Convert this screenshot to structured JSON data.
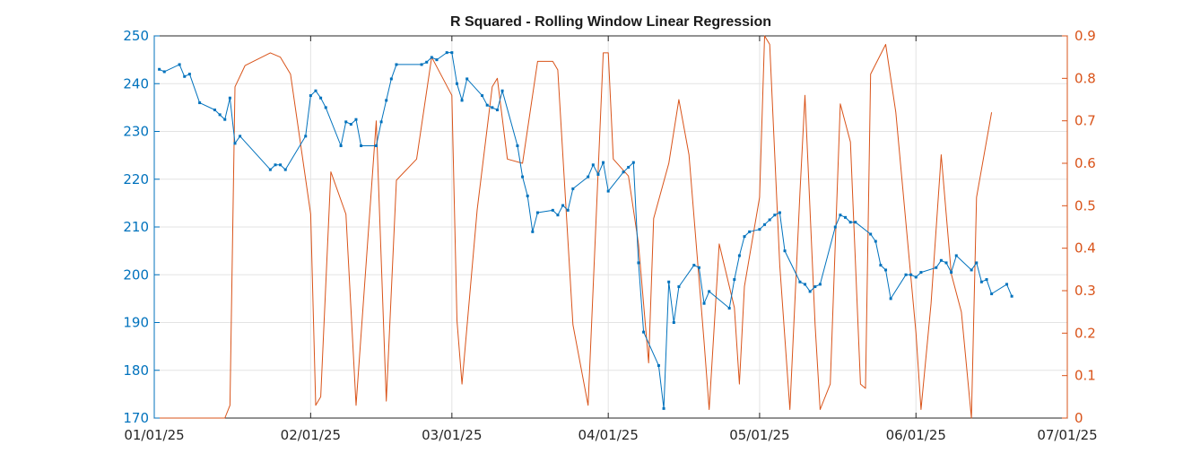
{
  "chart_data": {
    "type": "line",
    "title": "R Squared - Rolling Window Linear Regression",
    "xlabel": "",
    "ylabel_left": "",
    "ylabel_right": "",
    "x_ticks": [
      "01/01/25",
      "02/01/25",
      "03/01/25",
      "04/01/25",
      "05/01/25",
      "06/01/25",
      "07/01/25"
    ],
    "x_range": [
      "2025-01-01",
      "2025-07-01"
    ],
    "ylim_left": [
      170,
      250
    ],
    "yticks_left": [
      "170",
      "180",
      "190",
      "200",
      "210",
      "220",
      "230",
      "240",
      "250"
    ],
    "ylim_right": [
      0,
      0.9
    ],
    "yticks_right": [
      "0",
      "0.1",
      "0.2",
      "0.3",
      "0.4",
      "0.5",
      "0.6",
      "0.7",
      "0.8",
      "0.9"
    ],
    "grid": true,
    "left_axis_color": "#0072BD",
    "right_axis_color": "#D95319",
    "series": [
      {
        "axis": "left",
        "color": "#0072BD",
        "markers": true,
        "points": [
          [
            "2025-01-02",
            243.0
          ],
          [
            "2025-01-03",
            242.5
          ],
          [
            "2025-01-06",
            244.0
          ],
          [
            "2025-01-07",
            241.5
          ],
          [
            "2025-01-08",
            242.0
          ],
          [
            "2025-01-10",
            236.0
          ],
          [
            "2025-01-13",
            234.5
          ],
          [
            "2025-01-14",
            233.5
          ],
          [
            "2025-01-15",
            232.5
          ],
          [
            "2025-01-16",
            237.0
          ],
          [
            "2025-01-17",
            227.5
          ],
          [
            "2025-01-18",
            229.0
          ],
          [
            "2025-01-24",
            222.0
          ],
          [
            "2025-01-25",
            223.0
          ],
          [
            "2025-01-26",
            223.0
          ],
          [
            "2025-01-27",
            222.0
          ],
          [
            "2025-01-31",
            229.0
          ],
          [
            "2025-02-01",
            237.5
          ],
          [
            "2025-02-02",
            238.5
          ],
          [
            "2025-02-03",
            237.0
          ],
          [
            "2025-02-04",
            235.0
          ],
          [
            "2025-02-07",
            227.0
          ],
          [
            "2025-02-08",
            232.0
          ],
          [
            "2025-02-09",
            231.5
          ],
          [
            "2025-02-10",
            232.5
          ],
          [
            "2025-02-11",
            227.0
          ],
          [
            "2025-02-14",
            227.0
          ],
          [
            "2025-02-15",
            232.0
          ],
          [
            "2025-02-16",
            236.5
          ],
          [
            "2025-02-17",
            241.0
          ],
          [
            "2025-02-18",
            244.0
          ],
          [
            "2025-02-23",
            244.0
          ],
          [
            "2025-02-24",
            244.5
          ],
          [
            "2025-02-25",
            245.5
          ],
          [
            "2025-02-26",
            245.0
          ],
          [
            "2025-02-28",
            246.5
          ],
          [
            "2025-03-01",
            246.5
          ],
          [
            "2025-03-02",
            240.0
          ],
          [
            "2025-03-03",
            236.5
          ],
          [
            "2025-03-04",
            241.0
          ],
          [
            "2025-03-07",
            237.5
          ],
          [
            "2025-03-08",
            235.5
          ],
          [
            "2025-03-09",
            235.0
          ],
          [
            "2025-03-10",
            234.5
          ],
          [
            "2025-03-11",
            238.5
          ],
          [
            "2025-03-14",
            227.0
          ],
          [
            "2025-03-15",
            220.5
          ],
          [
            "2025-03-16",
            216.5
          ],
          [
            "2025-03-17",
            209.0
          ],
          [
            "2025-03-18",
            213.0
          ],
          [
            "2025-03-21",
            213.5
          ],
          [
            "2025-03-22",
            212.5
          ],
          [
            "2025-03-23",
            214.5
          ],
          [
            "2025-03-24",
            213.5
          ],
          [
            "2025-03-25",
            218.0
          ],
          [
            "2025-03-28",
            220.5
          ],
          [
            "2025-03-29",
            223.0
          ],
          [
            "2025-03-30",
            221.0
          ],
          [
            "2025-03-31",
            223.5
          ],
          [
            "2025-04-01",
            217.5
          ],
          [
            "2025-04-04",
            221.5
          ],
          [
            "2025-04-05",
            222.5
          ],
          [
            "2025-04-06",
            223.5
          ],
          [
            "2025-04-07",
            202.5
          ],
          [
            "2025-04-08",
            188.0
          ],
          [
            "2025-04-11",
            181.0
          ],
          [
            "2025-04-12",
            172.0
          ],
          [
            "2025-04-13",
            198.5
          ],
          [
            "2025-04-14",
            190.0
          ],
          [
            "2025-04-15",
            197.5
          ],
          [
            "2025-04-18",
            202.0
          ],
          [
            "2025-04-19",
            201.5
          ],
          [
            "2025-04-20",
            194.0
          ],
          [
            "2025-04-21",
            196.5
          ],
          [
            "2025-04-25",
            193.0
          ],
          [
            "2025-04-26",
            199.0
          ],
          [
            "2025-04-27",
            204.0
          ],
          [
            "2025-04-28",
            208.0
          ],
          [
            "2025-04-29",
            209.0
          ],
          [
            "2025-05-01",
            209.5
          ],
          [
            "2025-05-02",
            210.5
          ],
          [
            "2025-05-03",
            211.5
          ],
          [
            "2025-05-04",
            212.5
          ],
          [
            "2025-05-05",
            213.0
          ],
          [
            "2025-05-06",
            205.0
          ],
          [
            "2025-05-09",
            198.5
          ],
          [
            "2025-05-10",
            198.0
          ],
          [
            "2025-05-11",
            196.5
          ],
          [
            "2025-05-12",
            197.5
          ],
          [
            "2025-05-13",
            198.0
          ],
          [
            "2025-05-16",
            210.0
          ],
          [
            "2025-05-17",
            212.5
          ],
          [
            "2025-05-18",
            212.0
          ],
          [
            "2025-05-19",
            211.0
          ],
          [
            "2025-05-20",
            211.0
          ],
          [
            "2025-05-23",
            208.5
          ],
          [
            "2025-05-24",
            207.0
          ],
          [
            "2025-05-25",
            202.0
          ],
          [
            "2025-05-26",
            201.0
          ],
          [
            "2025-05-27",
            195.0
          ],
          [
            "2025-05-30",
            200.0
          ],
          [
            "2025-05-31",
            200.0
          ],
          [
            "2025-06-01",
            199.5
          ],
          [
            "2025-06-02",
            200.5
          ],
          [
            "2025-06-05",
            201.5
          ],
          [
            "2025-06-06",
            203.0
          ],
          [
            "2025-06-07",
            202.5
          ],
          [
            "2025-06-08",
            200.5
          ],
          [
            "2025-06-09",
            204.0
          ],
          [
            "2025-06-12",
            201.0
          ],
          [
            "2025-06-13",
            202.5
          ],
          [
            "2025-06-14",
            198.5
          ],
          [
            "2025-06-15",
            199.0
          ],
          [
            "2025-06-16",
            196.0
          ],
          [
            "2025-06-19",
            198.0
          ],
          [
            "2025-06-20",
            195.5
          ]
        ]
      },
      {
        "axis": "right",
        "color": "#D95319",
        "markers": false,
        "points": [
          [
            "2025-01-01",
            0.0
          ],
          [
            "2025-01-15",
            0.0
          ],
          [
            "2025-01-16",
            0.03
          ],
          [
            "2025-01-17",
            0.78
          ],
          [
            "2025-01-19",
            0.83
          ],
          [
            "2025-01-24",
            0.86
          ],
          [
            "2025-01-26",
            0.85
          ],
          [
            "2025-01-28",
            0.81
          ],
          [
            "2025-02-01",
            0.48
          ],
          [
            "2025-02-02",
            0.03
          ],
          [
            "2025-02-03",
            0.05
          ],
          [
            "2025-02-05",
            0.58
          ],
          [
            "2025-02-08",
            0.48
          ],
          [
            "2025-02-10",
            0.03
          ],
          [
            "2025-02-14",
            0.7
          ],
          [
            "2025-02-16",
            0.04
          ],
          [
            "2025-02-18",
            0.56
          ],
          [
            "2025-02-22",
            0.61
          ],
          [
            "2025-02-25",
            0.85
          ],
          [
            "2025-03-01",
            0.76
          ],
          [
            "2025-03-02",
            0.23
          ],
          [
            "2025-03-03",
            0.08
          ],
          [
            "2025-03-06",
            0.49
          ],
          [
            "2025-03-09",
            0.78
          ],
          [
            "2025-03-10",
            0.8
          ],
          [
            "2025-03-12",
            0.61
          ],
          [
            "2025-03-15",
            0.6
          ],
          [
            "2025-03-18",
            0.84
          ],
          [
            "2025-03-21",
            0.84
          ],
          [
            "2025-03-22",
            0.82
          ],
          [
            "2025-03-25",
            0.22
          ],
          [
            "2025-03-28",
            0.03
          ],
          [
            "2025-03-31",
            0.86
          ],
          [
            "2025-04-01",
            0.86
          ],
          [
            "2025-04-02",
            0.61
          ],
          [
            "2025-04-05",
            0.57
          ],
          [
            "2025-04-07",
            0.41
          ],
          [
            "2025-04-09",
            0.13
          ],
          [
            "2025-04-10",
            0.47
          ],
          [
            "2025-04-13",
            0.6
          ],
          [
            "2025-04-15",
            0.75
          ],
          [
            "2025-04-17",
            0.62
          ],
          [
            "2025-04-20",
            0.18
          ],
          [
            "2025-04-21",
            0.02
          ],
          [
            "2025-04-23",
            0.41
          ],
          [
            "2025-04-26",
            0.26
          ],
          [
            "2025-04-27",
            0.08
          ],
          [
            "2025-04-28",
            0.31
          ],
          [
            "2025-05-01",
            0.52
          ],
          [
            "2025-05-02",
            0.9
          ],
          [
            "2025-05-03",
            0.88
          ],
          [
            "2025-05-05",
            0.36
          ],
          [
            "2025-05-07",
            0.02
          ],
          [
            "2025-05-09",
            0.53
          ],
          [
            "2025-05-10",
            0.76
          ],
          [
            "2025-05-12",
            0.22
          ],
          [
            "2025-05-13",
            0.02
          ],
          [
            "2025-05-15",
            0.08
          ],
          [
            "2025-05-17",
            0.74
          ],
          [
            "2025-05-19",
            0.65
          ],
          [
            "2025-05-21",
            0.08
          ],
          [
            "2025-05-22",
            0.07
          ],
          [
            "2025-05-23",
            0.81
          ],
          [
            "2025-05-26",
            0.88
          ],
          [
            "2025-05-28",
            0.72
          ],
          [
            "2025-06-01",
            0.2
          ],
          [
            "2025-06-02",
            0.02
          ],
          [
            "2025-06-04",
            0.27
          ],
          [
            "2025-06-06",
            0.62
          ],
          [
            "2025-06-08",
            0.34
          ],
          [
            "2025-06-10",
            0.25
          ],
          [
            "2025-06-12",
            0.0
          ],
          [
            "2025-06-13",
            0.52
          ],
          [
            "2025-06-16",
            0.72
          ]
        ]
      }
    ]
  }
}
